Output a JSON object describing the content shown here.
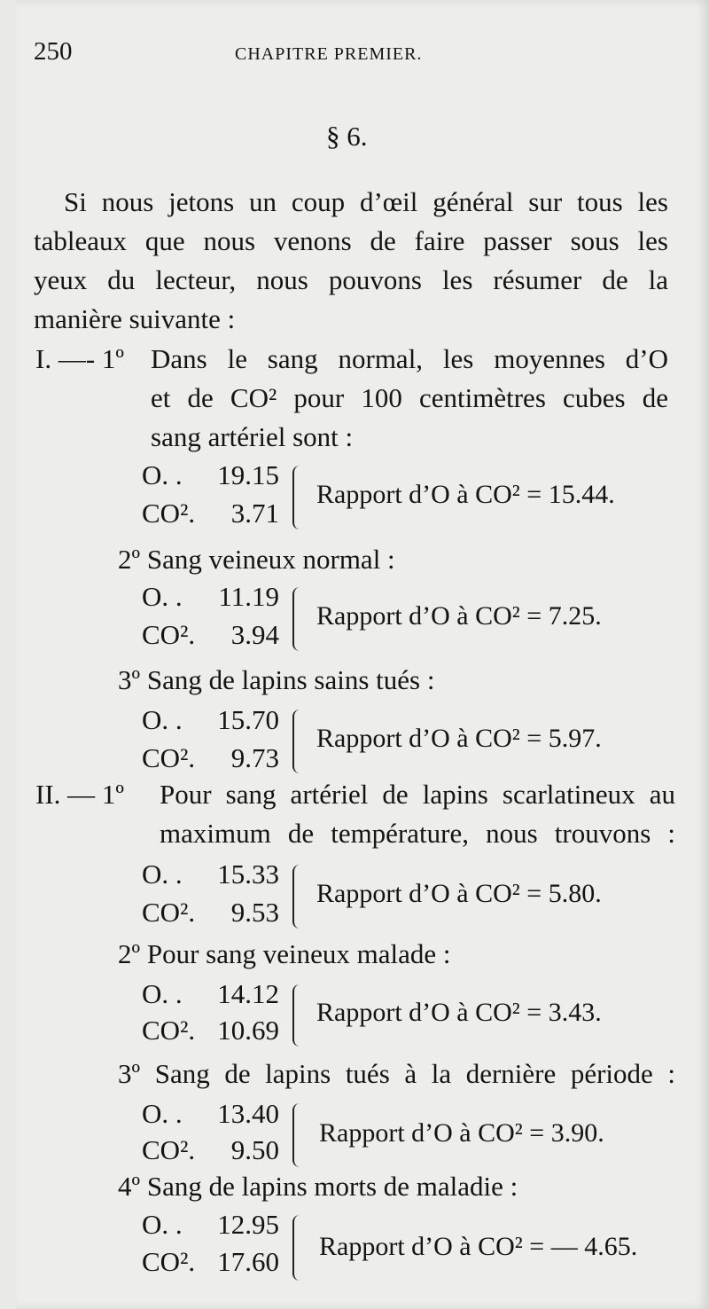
{
  "header": {
    "page_number": "250",
    "running_head": "CHAPITRE PREMIER."
  },
  "section": "§ 6.",
  "intro": [
    "Si nous jetons un coup d’œil général sur tous les",
    "tableaux que nous venons de faire passer sous les",
    "yeux du lecteur, nous pouvons les résumer de la",
    "manière suivante :"
  ],
  "part1": {
    "marker": "I. —- 1º",
    "lines": [
      "Dans le sang normal, les moyennes d’O",
      "et de CO² pour 100 centimètres cubes de",
      "sang artériel sont :"
    ],
    "items": [
      {
        "heading": "",
        "o": "19.15",
        "co2": "3.71",
        "ratio": "Rapport d’O à CO² = 15.44."
      },
      {
        "heading": "2º Sang veineux normal :",
        "o": "11.19",
        "co2": "3.94",
        "ratio": "Rapport d’O à CO² = 7.25."
      },
      {
        "heading": "3º Sang de lapins sains tués :",
        "o": "15.70",
        "co2": "9.73",
        "ratio": "Rapport d’O à CO² = 5.97."
      }
    ]
  },
  "part2": {
    "marker": "II. — 1º",
    "lines": [
      "Pour sang artériel de lapins scarlatineux au",
      "maximum de température, nous trouvons :"
    ],
    "items": [
      {
        "heading": "",
        "o": "15.33",
        "co2": "9.53",
        "ratio": "Rapport d’O à CO² = 5.80."
      },
      {
        "heading": "2º Pour sang veineux malade :",
        "o": "14.12",
        "co2": "10.69",
        "ratio": "Rapport d’O à CO² = 3.43."
      },
      {
        "heading": "3º Sang de lapins tués à la dernière période :",
        "o": "13.40",
        "co2": "9.50",
        "ratio": "Rapport d’O à CO² = 3.90."
      },
      {
        "heading": "4º Sang de lapins morts de maladie :",
        "o": "12.95",
        "co2": "17.60",
        "ratio": "Rapport d’O à CO² = — 4.65."
      }
    ]
  },
  "labels": {
    "o": "O. .",
    "co2": "CO²."
  }
}
